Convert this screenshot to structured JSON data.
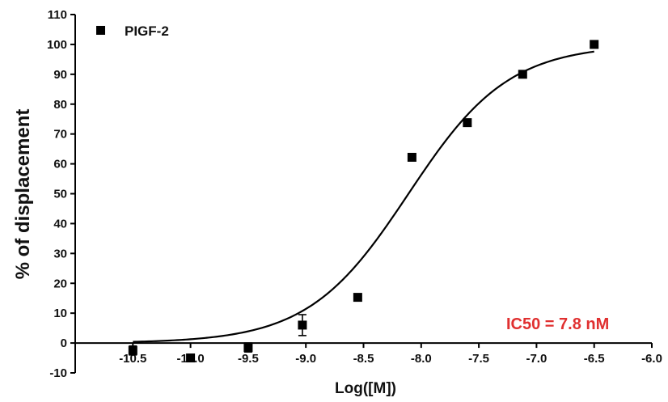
{
  "chart_data": {
    "type": "scatter",
    "xlabel": "Log([M])",
    "ylabel": "% of displacement",
    "xlim": [
      -11.0,
      -6.0
    ],
    "ylim": [
      -10,
      110
    ],
    "x_ticks": [
      -10.5,
      -10.0,
      -9.5,
      -9.0,
      -8.5,
      -8.0,
      -7.5,
      -7.0,
      -6.5,
      -6.0
    ],
    "x_tick_labels": [
      "-10.5",
      "-10.0",
      "-9.5",
      "-9.0",
      "-8.5",
      "-8.0",
      "-7.5",
      "-7.0",
      "-6.5",
      "-6.0"
    ],
    "y_ticks": [
      -10,
      0,
      10,
      20,
      30,
      40,
      50,
      60,
      70,
      80,
      90,
      100,
      110
    ],
    "y_tick_labels": [
      "-10",
      "0",
      "10",
      "20",
      "30",
      "40",
      "50",
      "60",
      "70",
      "80",
      "90",
      "100",
      "110"
    ],
    "grid": false,
    "legend": {
      "position": "top-left",
      "entries": [
        "PIGF-2"
      ]
    },
    "series": [
      {
        "name": "PIGF-2",
        "marker": "square",
        "color": "#000000",
        "points": [
          {
            "x": -10.5,
            "y": -2.5,
            "err": 1.5
          },
          {
            "x": -10.0,
            "y": -5.0,
            "err": 0
          },
          {
            "x": -9.5,
            "y": -1.5,
            "err": 1.5
          },
          {
            "x": -9.03,
            "y": 6.0,
            "err": 3.5
          },
          {
            "x": -8.55,
            "y": 15.3,
            "err": 0
          },
          {
            "x": -8.08,
            "y": 62.2,
            "err": 0
          },
          {
            "x": -7.6,
            "y": 73.8,
            "err": 0
          },
          {
            "x": -7.12,
            "y": 90.0,
            "err": 0
          },
          {
            "x": -6.5,
            "y": 100.0,
            "err": 0
          }
        ]
      }
    ],
    "fit": {
      "model": "sigmoidal dose-response",
      "bottom": 0,
      "top": 100,
      "logIC50": -8.11,
      "hill": 1.0,
      "x_range": [
        -10.5,
        -6.5
      ]
    },
    "annotation": {
      "text": "IC50 = 7.8 nM",
      "color": "#e03030"
    }
  }
}
